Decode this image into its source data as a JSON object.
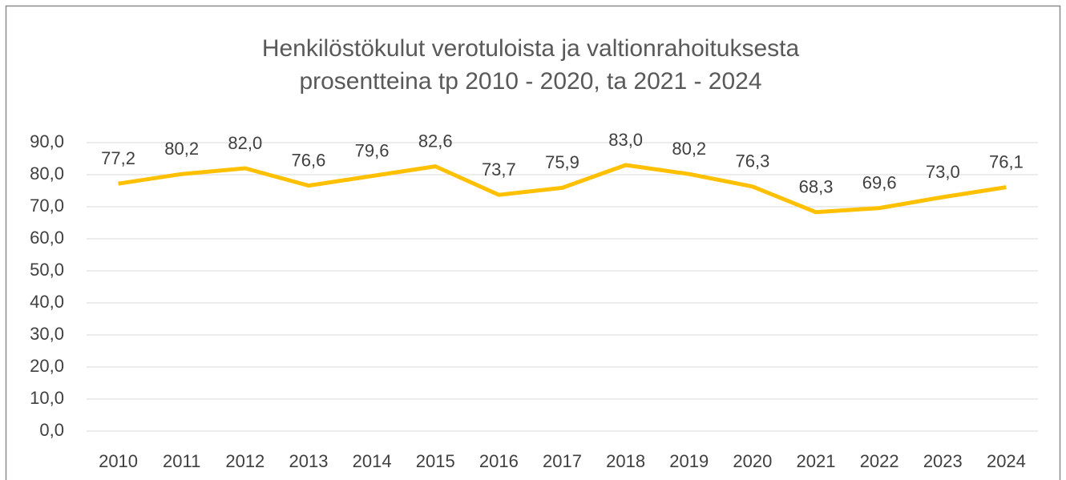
{
  "chart_data": {
    "type": "line",
    "title": [
      "Henkilöstökulut verotuloista ja valtionrahoituksesta",
      "prosentteina tp 2010 - 2020, ta 2021 - 2024"
    ],
    "categories": [
      "2010",
      "2011",
      "2012",
      "2013",
      "2014",
      "2015",
      "2016",
      "2017",
      "2018",
      "2019",
      "2020",
      "2021",
      "2022",
      "2023",
      "2024"
    ],
    "series": [
      {
        "color": "#ffc000",
        "values": [
          77.2,
          80.2,
          82.0,
          76.6,
          79.6,
          82.6,
          73.7,
          75.9,
          83.0,
          80.2,
          76.3,
          68.3,
          69.6,
          73.0,
          76.1
        ],
        "value_labels": [
          "77,2",
          "80,2",
          "82,0",
          "76,6",
          "79,6",
          "82,6",
          "73,7",
          "75,9",
          "83,0",
          "80,2",
          "76,3",
          "68,3",
          "69,6",
          "73,0",
          "76,1"
        ]
      }
    ],
    "ylim": [
      0,
      90
    ],
    "yticks": [
      {
        "value": 0,
        "label": "0,0"
      },
      {
        "value": 10,
        "label": "10,0"
      },
      {
        "value": 20,
        "label": "20,0"
      },
      {
        "value": 30,
        "label": "30,0"
      },
      {
        "value": 40,
        "label": "40,0"
      },
      {
        "value": 50,
        "label": "50,0"
      },
      {
        "value": 60,
        "label": "60,0"
      },
      {
        "value": 70,
        "label": "70,0"
      },
      {
        "value": 80,
        "label": "80,0"
      },
      {
        "value": 90,
        "label": "90,0"
      }
    ],
    "grid": true
  }
}
